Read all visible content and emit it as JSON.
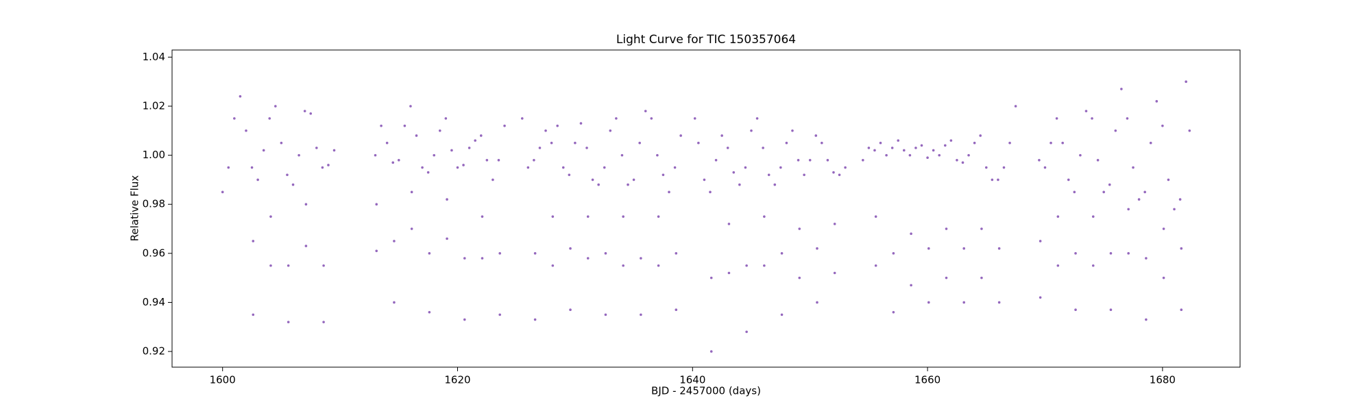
{
  "chart_data": {
    "type": "scatter",
    "title": "Light Curve for TIC 150357064",
    "x_label": "BJD - 2457000 (days)",
    "y_label": "Relative Flux",
    "xlim": [
      1595.7,
      1686.6
    ],
    "ylim": [
      0.9136,
      1.0429
    ],
    "xticks": [
      1600,
      1620,
      1640,
      1660,
      1680
    ],
    "yticks": [
      0.92,
      0.94,
      0.96,
      0.98,
      {
        "value": 1,
        "label": "1.00"
      },
      1.02,
      1.04
    ],
    "grid": false,
    "series": [
      {
        "color": "#9467bd",
        "x": [
          1600.0,
          1600.5,
          1601.0,
          1601.5,
          1602.0,
          1602.5,
          1603.0,
          1603.5,
          1604.0,
          1604.5,
          1605.0,
          1605.5,
          1606.0,
          1606.5,
          1607.0,
          1607.5,
          1608.0,
          1608.5,
          1609.0,
          1609.5,
          1613.0,
          1613.5,
          1614.0,
          1614.5,
          1615.0,
          1615.5,
          1616.0,
          1616.5,
          1617.0,
          1617.5,
          1618.0,
          1618.5,
          1619.0,
          1619.5,
          1620.0,
          1620.5,
          1621.0,
          1621.5,
          1622.0,
          1622.5,
          1623.0,
          1623.5,
          1624.0,
          1625.5,
          1626.0,
          1626.5,
          1627.0,
          1627.5,
          1628.0,
          1628.5,
          1629.0,
          1629.5,
          1630.0,
          1630.5,
          1631.0,
          1631.5,
          1632.0,
          1632.5,
          1633.0,
          1633.5,
          1634.0,
          1634.5,
          1635.0,
          1635.5,
          1636.0,
          1636.5,
          1637.0,
          1637.5,
          1638.0,
          1638.5,
          1639.0,
          1640.2,
          1640.5,
          1641.0,
          1641.5,
          1642.0,
          1642.5,
          1643.0,
          1643.5,
          1644.0,
          1644.5,
          1645.0,
          1645.5,
          1646.0,
          1646.5,
          1647.0,
          1647.5,
          1648.0,
          1648.5,
          1649.0,
          1649.5,
          1650.0,
          1650.5,
          1651.0,
          1651.5,
          1652.0,
          1652.5,
          1653.0,
          1654.5,
          1655.0,
          1655.5,
          1656.0,
          1656.5,
          1657.0,
          1657.5,
          1658.0,
          1658.5,
          1659.0,
          1659.5,
          1660.0,
          1660.5,
          1661.0,
          1661.5,
          1662.0,
          1662.5,
          1663.0,
          1663.5,
          1664.0,
          1664.5,
          1665.0,
          1665.5,
          1666.0,
          1666.5,
          1667.0,
          1667.5,
          1669.5,
          1670.0,
          1670.5,
          1671.0,
          1671.5,
          1672.0,
          1672.5,
          1673.0,
          1673.5,
          1674.0,
          1674.5,
          1675.0,
          1675.5,
          1676.0,
          1676.5,
          1677.0,
          1677.5,
          1678.0,
          1678.5,
          1679.0,
          1679.5,
          1680.0,
          1680.5,
          1681.0,
          1681.5,
          1682.0,
          1682.3,
          1602.6,
          1602.6,
          1604.1,
          1604.1,
          1605.6,
          1605.6,
          1607.1,
          1607.1,
          1608.6,
          1608.6,
          1613.1,
          1613.1,
          1614.6,
          1614.6,
          1616.1,
          1616.1,
          1617.6,
          1617.6,
          1619.1,
          1619.1,
          1620.6,
          1620.6,
          1622.1,
          1622.1,
          1623.6,
          1623.6,
          1626.6,
          1626.6,
          1628.1,
          1628.1,
          1629.6,
          1629.6,
          1631.1,
          1631.1,
          1632.6,
          1632.6,
          1634.1,
          1634.1,
          1635.6,
          1635.6,
          1637.1,
          1637.1,
          1638.6,
          1638.6,
          1641.6,
          1641.6,
          1643.1,
          1643.1,
          1644.6,
          1644.6,
          1646.1,
          1646.1,
          1647.6,
          1647.6,
          1649.1,
          1649.1,
          1650.6,
          1650.6,
          1652.1,
          1652.1,
          1655.6,
          1655.6,
          1657.1,
          1657.1,
          1658.6,
          1658.6,
          1660.1,
          1660.1,
          1661.6,
          1661.6,
          1663.1,
          1663.1,
          1664.6,
          1664.6,
          1666.1,
          1666.1,
          1669.6,
          1669.6,
          1671.1,
          1671.1,
          1672.6,
          1672.6,
          1674.1,
          1674.1,
          1675.6,
          1675.6,
          1677.1,
          1677.1,
          1678.6,
          1678.6,
          1680.1,
          1680.1,
          1681.6,
          1681.6
        ],
        "values": [
          0.985,
          0.995,
          1.015,
          1.024,
          1.01,
          0.995,
          0.99,
          1.002,
          1.015,
          1.02,
          1.005,
          0.992,
          0.988,
          1.0,
          1.018,
          1.017,
          1.003,
          0.995,
          0.996,
          1.002,
          1.0,
          1.012,
          1.005,
          0.997,
          0.998,
          1.012,
          1.02,
          1.008,
          0.995,
          0.993,
          1.0,
          1.01,
          1.015,
          1.002,
          0.995,
          0.996,
          1.003,
          1.006,
          1.008,
          0.998,
          0.99,
          0.998,
          1.012,
          1.015,
          0.995,
          0.998,
          1.003,
          1.01,
          1.005,
          1.012,
          0.995,
          0.992,
          1.005,
          1.013,
          1.003,
          0.99,
          0.988,
          0.995,
          1.01,
          1.015,
          1.0,
          0.988,
          0.99,
          1.005,
          1.018,
          1.015,
          1.0,
          0.992,
          0.985,
          0.995,
          1.008,
          1.015,
          1.005,
          0.99,
          0.985,
          0.998,
          1.008,
          1.003,
          0.993,
          0.988,
          0.995,
          1.01,
          1.015,
          1.003,
          0.992,
          0.988,
          0.995,
          1.005,
          1.01,
          0.998,
          0.992,
          0.998,
          1.008,
          1.005,
          0.998,
          0.993,
          0.992,
          0.995,
          0.998,
          1.003,
          1.002,
          1.005,
          1.0,
          1.003,
          1.006,
          1.002,
          1.0,
          1.003,
          1.004,
          0.999,
          1.002,
          1.0,
          1.004,
          1.006,
          0.998,
          0.997,
          1.0,
          1.005,
          1.008,
          0.995,
          0.99,
          0.99,
          0.995,
          1.005,
          1.02,
          0.998,
          0.995,
          1.005,
          1.015,
          1.005,
          0.99,
          0.985,
          1.0,
          1.018,
          1.015,
          0.998,
          0.985,
          0.988,
          1.01,
          1.027,
          1.015,
          0.995,
          0.982,
          0.985,
          1.005,
          1.022,
          1.012,
          0.99,
          0.978,
          0.982,
          1.03,
          1.01,
          0.965,
          0.935,
          0.975,
          0.955,
          0.955,
          0.932,
          0.98,
          0.963,
          0.955,
          0.932,
          0.98,
          0.961,
          0.965,
          0.94,
          0.985,
          0.97,
          0.96,
          0.936,
          0.982,
          0.966,
          0.958,
          0.933,
          0.975,
          0.958,
          0.96,
          0.935,
          0.96,
          0.933,
          0.975,
          0.955,
          0.962,
          0.937,
          0.975,
          0.958,
          0.96,
          0.935,
          0.975,
          0.955,
          0.958,
          0.935,
          0.975,
          0.955,
          0.96,
          0.937,
          0.95,
          0.92,
          0.972,
          0.952,
          0.955,
          0.928,
          0.975,
          0.955,
          0.96,
          0.935,
          0.97,
          0.95,
          0.962,
          0.94,
          0.972,
          0.952,
          0.975,
          0.955,
          0.96,
          0.936,
          0.968,
          0.947,
          0.962,
          0.94,
          0.97,
          0.95,
          0.962,
          0.94,
          0.97,
          0.95,
          0.962,
          0.94,
          0.965,
          0.942,
          0.975,
          0.955,
          0.96,
          0.937,
          0.975,
          0.955,
          0.96,
          0.937,
          0.978,
          0.96,
          0.958,
          0.933,
          0.97,
          0.95,
          0.962,
          0.937
        ]
      }
    ]
  }
}
